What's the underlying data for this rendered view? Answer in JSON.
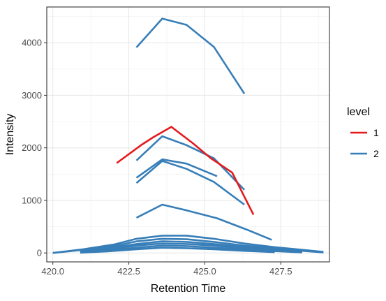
{
  "chart_data": {
    "type": "line",
    "xlabel": "Retention Time",
    "ylabel": "Intensity",
    "xlim": [
      419.8,
      429.1
    ],
    "ylim": [
      -170,
      4680
    ],
    "x_ticks": [
      420.0,
      422.5,
      425.0,
      427.5
    ],
    "x_tick_labels": [
      "420.0",
      "422.5",
      "425.0",
      "427.5"
    ],
    "y_ticks": [
      0,
      1000,
      2000,
      3000,
      4000
    ],
    "y_tick_labels": [
      "0",
      "1000",
      "2000",
      "3000",
      "4000"
    ],
    "grid": true,
    "legend": {
      "title": "level",
      "position": "right",
      "entries": [
        {
          "label": "1",
          "color": "#e41a1c"
        },
        {
          "label": "2",
          "color": "#377eb8"
        }
      ]
    },
    "series": [
      {
        "level": "2",
        "color": "#377eb8",
        "x": [
          422.75,
          423.6,
          424.4,
          425.3,
          426.3
        ],
        "y": [
          3910,
          4460,
          4340,
          3920,
          3030
        ]
      },
      {
        "level": "2",
        "color": "#377eb8",
        "x": [
          422.75,
          423.6,
          424.4,
          425.3,
          426.3
        ],
        "y": [
          1760,
          2220,
          2050,
          1800,
          1200
        ]
      },
      {
        "level": "2",
        "color": "#377eb8",
        "x": [
          422.75,
          423.6,
          424.4,
          425.4
        ],
        "y": [
          1430,
          1780,
          1700,
          1460
        ]
      },
      {
        "level": "2",
        "color": "#377eb8",
        "x": [
          422.75,
          423.6,
          424.4,
          425.3,
          426.3
        ],
        "y": [
          1330,
          1750,
          1600,
          1350,
          920
        ]
      },
      {
        "level": "2",
        "color": "#377eb8",
        "x": [
          422.75,
          423.6,
          424.4,
          425.4,
          426.4,
          427.2
        ],
        "y": [
          670,
          920,
          810,
          660,
          440,
          250
        ]
      },
      {
        "level": "2",
        "color": "#377eb8",
        "x": [
          420.0,
          421.0,
          422.0,
          422.75,
          423.6,
          424.4,
          425.3,
          426.3,
          427.3,
          428.2,
          428.9
        ],
        "y": [
          0,
          70,
          160,
          270,
          330,
          330,
          270,
          180,
          110,
          60,
          20
        ]
      },
      {
        "level": "2",
        "color": "#377eb8",
        "x": [
          420.0,
          421.0,
          422.0,
          422.75,
          423.6,
          424.4,
          425.3,
          426.3,
          427.3,
          428.2,
          428.9
        ],
        "y": [
          0,
          60,
          130,
          220,
          270,
          260,
          210,
          140,
          90,
          50,
          15
        ]
      },
      {
        "level": "2",
        "color": "#377eb8",
        "x": [
          420.9,
          421.8,
          422.75,
          423.6,
          424.4,
          425.3,
          426.3,
          427.3,
          428.2,
          428.9
        ],
        "y": [
          30,
          90,
          170,
          220,
          210,
          170,
          110,
          70,
          40,
          10
        ]
      },
      {
        "level": "2",
        "color": "#377eb8",
        "x": [
          420.9,
          421.8,
          422.75,
          423.6,
          424.4,
          425.3,
          426.3,
          427.3,
          428.2
        ],
        "y": [
          20,
          70,
          140,
          180,
          170,
          140,
          90,
          50,
          20
        ]
      },
      {
        "level": "2",
        "color": "#377eb8",
        "x": [
          420.9,
          421.8,
          422.75,
          423.6,
          424.4,
          425.3,
          426.3,
          427.3,
          428.2
        ],
        "y": [
          10,
          50,
          100,
          140,
          130,
          100,
          70,
          35,
          10
        ]
      },
      {
        "level": "2",
        "color": "#377eb8",
        "x": [
          420.9,
          421.8,
          422.75,
          423.6,
          424.4,
          425.3,
          426.3,
          427.3
        ],
        "y": [
          5,
          30,
          70,
          100,
          90,
          70,
          40,
          15
        ]
      },
      {
        "level": "1",
        "color": "#e41a1c",
        "x": [
          422.1,
          422.9,
          423.3,
          423.9,
          424.6,
          425.2,
          425.9,
          426.6
        ],
        "y": [
          1710,
          2050,
          2200,
          2400,
          2090,
          1800,
          1530,
          730
        ]
      }
    ]
  }
}
